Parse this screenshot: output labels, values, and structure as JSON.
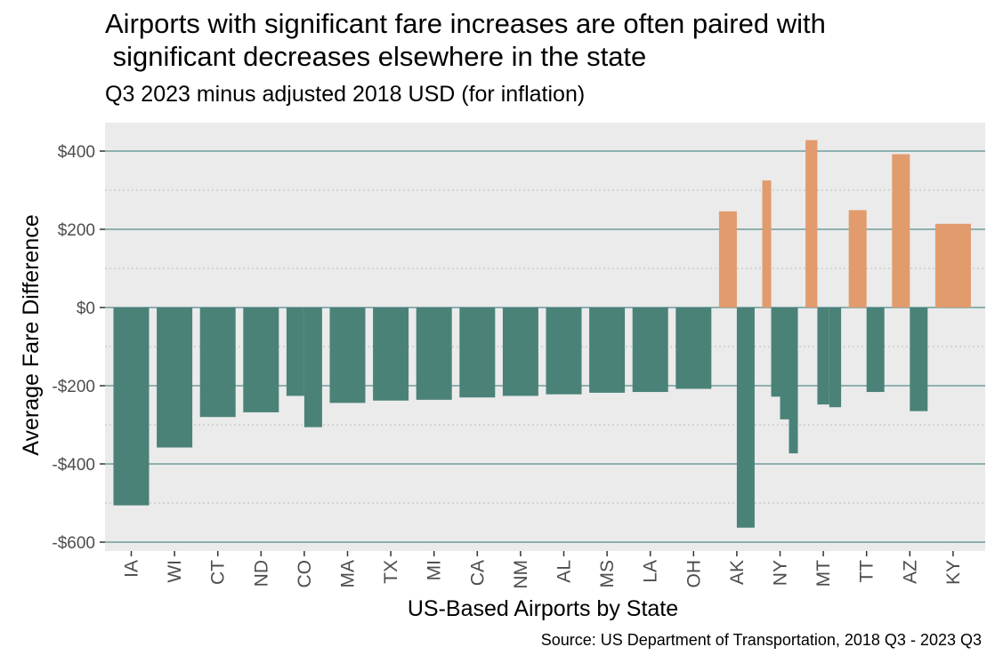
{
  "title": "Airports with significant fare increases are often paired with\n significant decreases elsewhere in the state",
  "subtitle": "Q3 2023 minus adjusted 2018 USD (for inflation)",
  "caption": "Source: US Department of Transportation, 2018 Q3 - 2023 Q3",
  "colors": {
    "panel": "#ebebeb",
    "gridline": "#8fb0b0",
    "negative": "#4a8278",
    "positive": "#e29b6d"
  },
  "chart_data": {
    "type": "bar",
    "xlabel": "US-Based Airports by State",
    "ylabel": "Average Fare Difference",
    "ylim": [
      -620,
      430
    ],
    "yticks": [
      -600,
      -400,
      -200,
      0,
      200,
      400
    ],
    "ytick_labels": [
      "-$600",
      "-$400",
      "-$200",
      "$0",
      "$200",
      "$400"
    ],
    "grid": true,
    "categories": [
      "IA",
      "WI",
      "CT",
      "ND",
      "CO",
      "MA",
      "TX",
      "MI",
      "CA",
      "NM",
      "AL",
      "MS",
      "LA",
      "OH",
      "AK",
      "NY",
      "MT",
      "TT",
      "AZ",
      "KY"
    ],
    "groups": [
      {
        "state": "IA",
        "values": [
          -506
        ]
      },
      {
        "state": "WI",
        "values": [
          -358
        ]
      },
      {
        "state": "CT",
        "values": [
          -280
        ]
      },
      {
        "state": "ND",
        "values": [
          -268
        ]
      },
      {
        "state": "CO",
        "values": [
          -226,
          -306
        ]
      },
      {
        "state": "MA",
        "values": [
          -244
        ]
      },
      {
        "state": "TX",
        "values": [
          -238
        ]
      },
      {
        "state": "MI",
        "values": [
          -236
        ]
      },
      {
        "state": "CA",
        "values": [
          -230
        ]
      },
      {
        "state": "NM",
        "values": [
          -226
        ]
      },
      {
        "state": "AL",
        "values": [
          -222
        ]
      },
      {
        "state": "MS",
        "values": [
          -218
        ]
      },
      {
        "state": "LA",
        "values": [
          -216
        ]
      },
      {
        "state": "OH",
        "values": [
          -208
        ]
      },
      {
        "state": "AK",
        "values": [
          246,
          -563
        ]
      },
      {
        "state": "NY",
        "values": [
          325,
          -228,
          -286,
          -373
        ]
      },
      {
        "state": "MT",
        "values": [
          428,
          -248,
          -255
        ]
      },
      {
        "state": "TT",
        "values": [
          249,
          -216
        ]
      },
      {
        "state": "AZ",
        "values": [
          392,
          -265
        ]
      },
      {
        "state": "KY",
        "values": [
          214
        ]
      }
    ]
  }
}
